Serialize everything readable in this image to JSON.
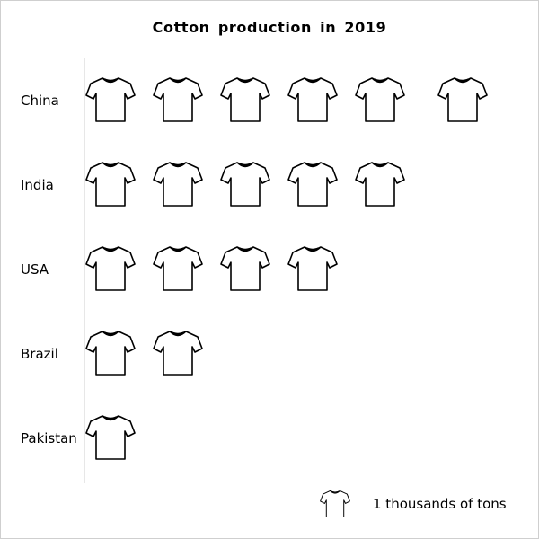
{
  "chart_data": {
    "type": "pictograph",
    "title": "Cotton production in 2019",
    "categories": [
      "China",
      "India",
      "USA",
      "Brazil",
      "Pakistan"
    ],
    "values": [
      6,
      5,
      4,
      2,
      1
    ],
    "icon": "t-shirt-icon",
    "legend": {
      "label": "1 thousands of tons",
      "unit_value": 1,
      "placement": "bottom-right"
    }
  }
}
